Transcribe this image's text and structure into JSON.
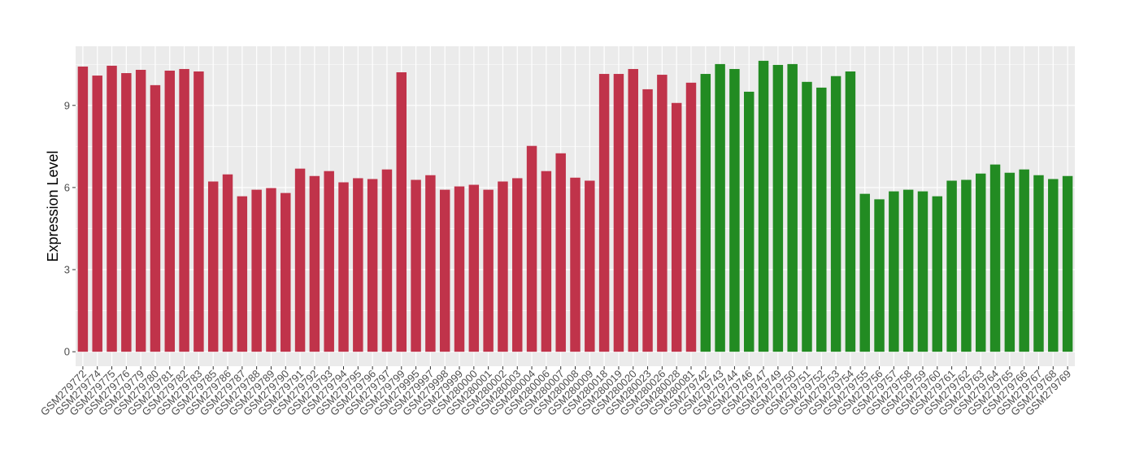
{
  "chart_data": {
    "type": "bar",
    "y_label": "Expression Level",
    "categories": [
      "GSM279772",
      "GSM279774",
      "GSM279775",
      "GSM279776",
      "GSM279779",
      "GSM279780",
      "GSM279781",
      "GSM279782",
      "GSM279783",
      "GSM279785",
      "GSM279786",
      "GSM279787",
      "GSM279788",
      "GSM279789",
      "GSM279790",
      "GSM279791",
      "GSM279792",
      "GSM279793",
      "GSM279794",
      "GSM279795",
      "GSM279796",
      "GSM279797",
      "GSM279799",
      "GSM279995",
      "GSM279997",
      "GSM279998",
      "GSM279999",
      "GSM280000",
      "GSM280001",
      "GSM280002",
      "GSM280003",
      "GSM280004",
      "GSM280006",
      "GSM280007",
      "GSM280008",
      "GSM280009",
      "GSM280018",
      "GSM280019",
      "GSM280020",
      "GSM280023",
      "GSM280026",
      "GSM280028",
      "GSM280081",
      "GSM279742",
      "GSM279743",
      "GSM279744",
      "GSM279746",
      "GSM279747",
      "GSM279749",
      "GSM279750",
      "GSM279751",
      "GSM279752",
      "GSM279753",
      "GSM279754",
      "GSM279755",
      "GSM279756",
      "GSM279757",
      "GSM279758",
      "GSM279759",
      "GSM279760",
      "GSM279761",
      "GSM279762",
      "GSM279763",
      "GSM279764",
      "GSM279765",
      "GSM279766",
      "GSM279767",
      "GSM279768",
      "GSM279769"
    ],
    "values": [
      10.42,
      10.09,
      10.45,
      10.18,
      10.3,
      9.74,
      10.27,
      10.33,
      10.24,
      6.22,
      6.48,
      5.68,
      5.92,
      5.98,
      5.8,
      6.69,
      6.42,
      6.6,
      6.19,
      6.34,
      6.31,
      6.66,
      10.21,
      6.28,
      6.45,
      5.92,
      6.04,
      6.1,
      5.92,
      6.22,
      6.34,
      7.52,
      6.6,
      7.25,
      6.36,
      6.25,
      10.15,
      10.15,
      10.33,
      9.59,
      10.12,
      9.09,
      9.83,
      10.15,
      10.51,
      10.33,
      9.5,
      10.63,
      10.48,
      10.51,
      9.86,
      9.65,
      10.07,
      10.24,
      5.77,
      5.57,
      5.86,
      5.92,
      5.86,
      5.68,
      6.25,
      6.28,
      6.51,
      6.84,
      6.54,
      6.66,
      6.45,
      6.31,
      6.42
    ],
    "colors": [
      "#c0334a",
      "#c0334a",
      "#c0334a",
      "#c0334a",
      "#c0334a",
      "#c0334a",
      "#c0334a",
      "#c0334a",
      "#c0334a",
      "#c0334a",
      "#c0334a",
      "#c0334a",
      "#c0334a",
      "#c0334a",
      "#c0334a",
      "#c0334a",
      "#c0334a",
      "#c0334a",
      "#c0334a",
      "#c0334a",
      "#c0334a",
      "#c0334a",
      "#c0334a",
      "#c0334a",
      "#c0334a",
      "#c0334a",
      "#c0334a",
      "#c0334a",
      "#c0334a",
      "#c0334a",
      "#c0334a",
      "#c0334a",
      "#c0334a",
      "#c0334a",
      "#c0334a",
      "#c0334a",
      "#c0334a",
      "#c0334a",
      "#c0334a",
      "#c0334a",
      "#c0334a",
      "#c0334a",
      "#c0334a",
      "#228b22",
      "#228b22",
      "#228b22",
      "#228b22",
      "#228b22",
      "#228b22",
      "#228b22",
      "#228b22",
      "#228b22",
      "#228b22",
      "#228b22",
      "#228b22",
      "#228b22",
      "#228b22",
      "#228b22",
      "#228b22",
      "#228b22",
      "#228b22",
      "#228b22",
      "#228b22",
      "#228b22",
      "#228b22",
      "#228b22",
      "#228b22",
      "#228b22",
      "#228b22"
    ],
    "ylim": [
      -0.53,
      11.16
    ],
    "yticks": [
      0,
      3,
      6,
      9
    ],
    "grid": true
  }
}
